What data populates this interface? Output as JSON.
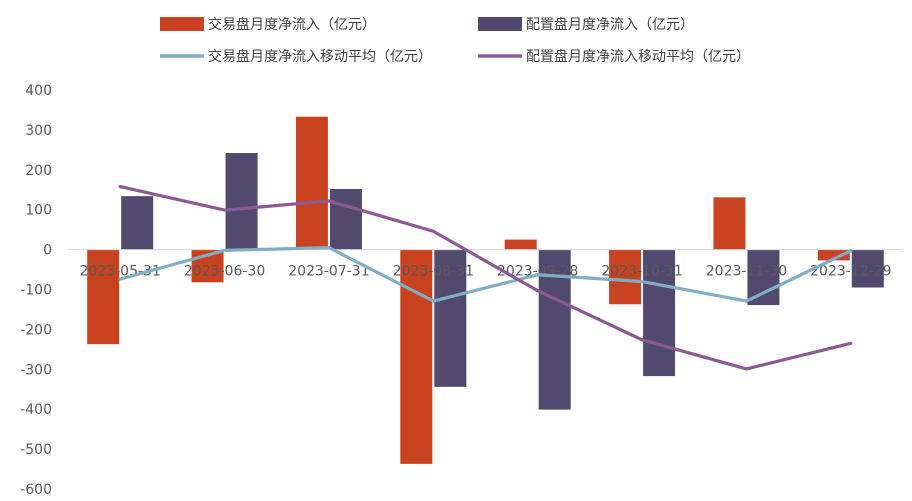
{
  "chart_data": {
    "type": "bar",
    "categories": [
      "2023-05-31",
      "2023-06-30",
      "2023-07-31",
      "2023-08-31",
      "2023-09-28",
      "2023-10-31",
      "2023-11-30",
      "2023-12-29"
    ],
    "series": [
      {
        "name": "交易盘月度净流入（亿元）",
        "kind": "bar",
        "color": "#C84220",
        "values": [
          -237,
          -82,
          333,
          -537,
          25,
          -137,
          131,
          -27
        ]
      },
      {
        "name": "配置盘月度净流入（亿元）",
        "kind": "bar",
        "color": "#524A6E",
        "values": [
          134,
          242,
          152,
          -344,
          -401,
          -317,
          -139,
          -95
        ]
      },
      {
        "name": "交易盘月度净流入移动平均（亿元）",
        "kind": "line",
        "color": "#7FAEC6",
        "values": [
          -74,
          -2,
          5,
          -129,
          -63,
          -80,
          -129,
          -3
        ]
      },
      {
        "name": "配置盘月度净流入移动平均（亿元）",
        "kind": "line",
        "color": "#8B5A94",
        "values": [
          158,
          99,
          122,
          46,
          -103,
          -226,
          -299,
          -235
        ]
      }
    ],
    "y_ticks": [
      400,
      300,
      200,
      100,
      0,
      -100,
      -200,
      -300,
      -400,
      -500,
      -600
    ],
    "ylim": [
      -600,
      400
    ],
    "legend_position": "top",
    "grid": false
  }
}
